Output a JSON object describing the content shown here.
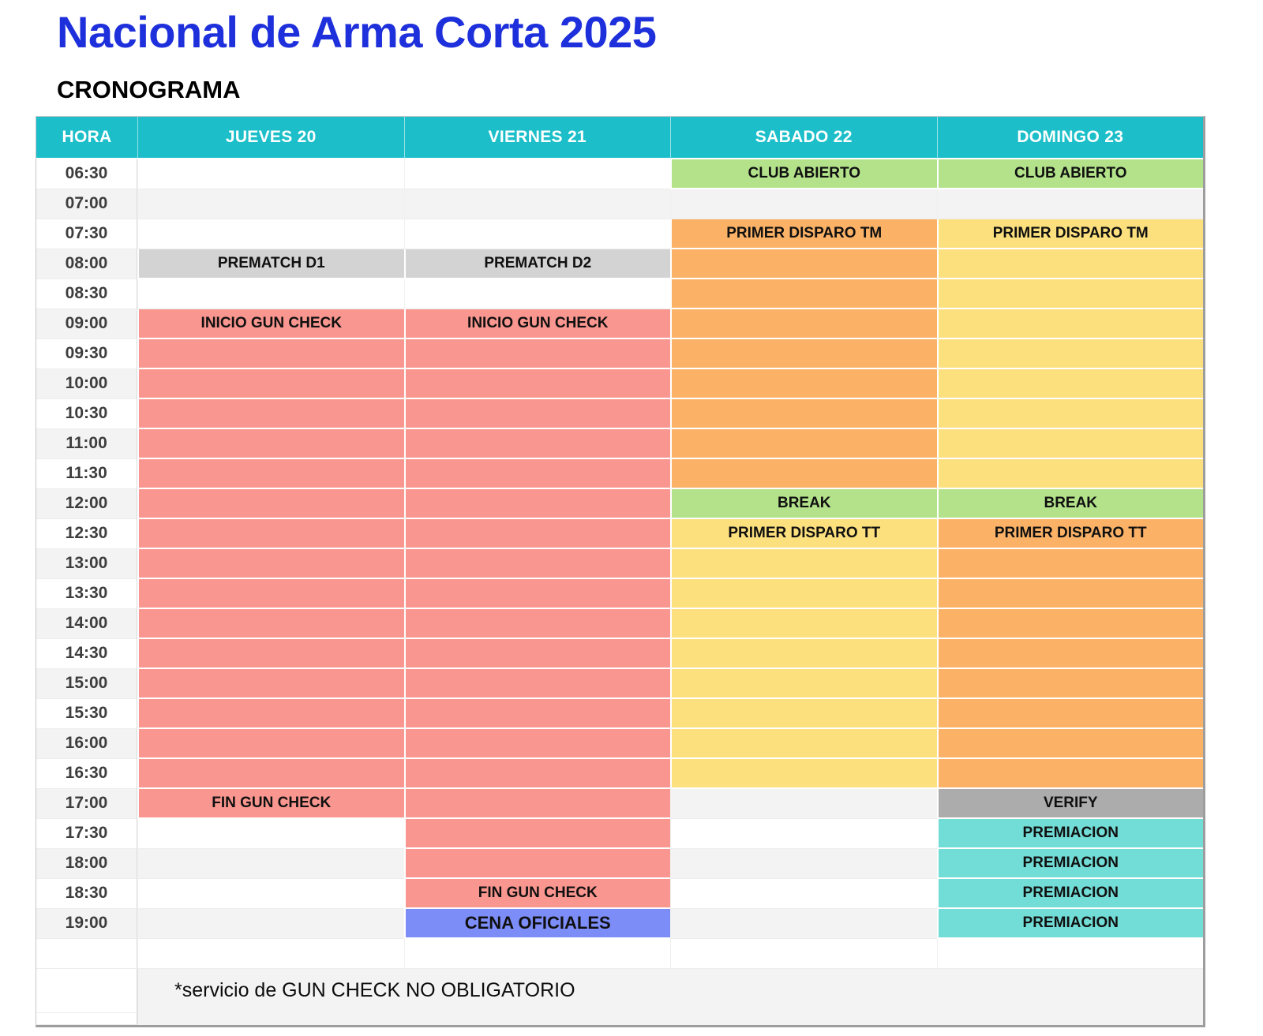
{
  "page": {
    "title": "Nacional de Arma Corta 2025",
    "subtitle": "CRONOGRAMA"
  },
  "palette": {
    "header_teal": "#1CBFC9",
    "salmon": "#F9968F",
    "orange": "#FBB267",
    "yellow": "#FCE07E",
    "green": "#B3E28B",
    "gray": "#D3D3D4",
    "darkgray": "#ACACAC",
    "teal": "#72DCD6",
    "blue": "#7D8DF8",
    "stripe": "#F3F3F4"
  },
  "schedule": {
    "columns": [
      "HORA",
      "JUEVES 20",
      "VIERNES 21",
      "SABADO 22",
      "DOMINGO 23"
    ],
    "rows": [
      {
        "time": "06:30",
        "cells": [
          null,
          null,
          {
            "t": "CLUB ABIERTO",
            "c": "green"
          },
          {
            "t": "CLUB ABIERTO",
            "c": "green"
          }
        ]
      },
      {
        "time": "07:00",
        "cells": [
          null,
          null,
          null,
          null
        ]
      },
      {
        "time": "07:30",
        "cells": [
          null,
          null,
          {
            "t": "PRIMER DISPARO TM",
            "c": "orange"
          },
          {
            "t": "PRIMER DISPARO TM",
            "c": "yellow"
          }
        ]
      },
      {
        "time": "08:00",
        "cells": [
          {
            "t": "PREMATCH D1",
            "c": "gray"
          },
          {
            "t": "PREMATCH D2",
            "c": "gray"
          },
          {
            "t": "",
            "c": "orange"
          },
          {
            "t": "",
            "c": "yellow"
          }
        ]
      },
      {
        "time": "08:30",
        "cells": [
          null,
          null,
          {
            "t": "",
            "c": "orange"
          },
          {
            "t": "",
            "c": "yellow"
          }
        ]
      },
      {
        "time": "09:00",
        "cells": [
          {
            "t": "INICIO GUN CHECK",
            "c": "salmon"
          },
          {
            "t": "INICIO GUN CHECK",
            "c": "salmon"
          },
          {
            "t": "",
            "c": "orange"
          },
          {
            "t": "",
            "c": "yellow"
          }
        ]
      },
      {
        "time": "09:30",
        "cells": [
          {
            "t": "",
            "c": "salmon"
          },
          {
            "t": "",
            "c": "salmon"
          },
          {
            "t": "",
            "c": "orange"
          },
          {
            "t": "",
            "c": "yellow"
          }
        ]
      },
      {
        "time": "10:00",
        "cells": [
          {
            "t": "",
            "c": "salmon"
          },
          {
            "t": "",
            "c": "salmon"
          },
          {
            "t": "",
            "c": "orange"
          },
          {
            "t": "",
            "c": "yellow"
          }
        ]
      },
      {
        "time": "10:30",
        "cells": [
          {
            "t": "",
            "c": "salmon"
          },
          {
            "t": "",
            "c": "salmon"
          },
          {
            "t": "",
            "c": "orange"
          },
          {
            "t": "",
            "c": "yellow"
          }
        ]
      },
      {
        "time": "11:00",
        "cells": [
          {
            "t": "",
            "c": "salmon"
          },
          {
            "t": "",
            "c": "salmon"
          },
          {
            "t": "",
            "c": "orange"
          },
          {
            "t": "",
            "c": "yellow"
          }
        ]
      },
      {
        "time": "11:30",
        "cells": [
          {
            "t": "",
            "c": "salmon"
          },
          {
            "t": "",
            "c": "salmon"
          },
          {
            "t": "",
            "c": "orange"
          },
          {
            "t": "",
            "c": "yellow"
          }
        ]
      },
      {
        "time": "12:00",
        "cells": [
          {
            "t": "",
            "c": "salmon"
          },
          {
            "t": "",
            "c": "salmon"
          },
          {
            "t": "BREAK",
            "c": "green"
          },
          {
            "t": "BREAK",
            "c": "green"
          }
        ]
      },
      {
        "time": "12:30",
        "cells": [
          {
            "t": "",
            "c": "salmon"
          },
          {
            "t": "",
            "c": "salmon"
          },
          {
            "t": "PRIMER DISPARO TT",
            "c": "yellow"
          },
          {
            "t": "PRIMER DISPARO TT",
            "c": "orange"
          }
        ]
      },
      {
        "time": "13:00",
        "cells": [
          {
            "t": "",
            "c": "salmon"
          },
          {
            "t": "",
            "c": "salmon"
          },
          {
            "t": "",
            "c": "yellow"
          },
          {
            "t": "",
            "c": "orange"
          }
        ]
      },
      {
        "time": "13:30",
        "cells": [
          {
            "t": "",
            "c": "salmon"
          },
          {
            "t": "",
            "c": "salmon"
          },
          {
            "t": "",
            "c": "yellow"
          },
          {
            "t": "",
            "c": "orange"
          }
        ]
      },
      {
        "time": "14:00",
        "cells": [
          {
            "t": "",
            "c": "salmon"
          },
          {
            "t": "",
            "c": "salmon"
          },
          {
            "t": "",
            "c": "yellow"
          },
          {
            "t": "",
            "c": "orange"
          }
        ]
      },
      {
        "time": "14:30",
        "cells": [
          {
            "t": "",
            "c": "salmon"
          },
          {
            "t": "",
            "c": "salmon"
          },
          {
            "t": "",
            "c": "yellow"
          },
          {
            "t": "",
            "c": "orange"
          }
        ]
      },
      {
        "time": "15:00",
        "cells": [
          {
            "t": "",
            "c": "salmon"
          },
          {
            "t": "",
            "c": "salmon"
          },
          {
            "t": "",
            "c": "yellow"
          },
          {
            "t": "",
            "c": "orange"
          }
        ]
      },
      {
        "time": "15:30",
        "cells": [
          {
            "t": "",
            "c": "salmon"
          },
          {
            "t": "",
            "c": "salmon"
          },
          {
            "t": "",
            "c": "yellow"
          },
          {
            "t": "",
            "c": "orange"
          }
        ]
      },
      {
        "time": "16:00",
        "cells": [
          {
            "t": "",
            "c": "salmon"
          },
          {
            "t": "",
            "c": "salmon"
          },
          {
            "t": "",
            "c": "yellow"
          },
          {
            "t": "",
            "c": "orange"
          }
        ]
      },
      {
        "time": "16:30",
        "cells": [
          {
            "t": "",
            "c": "salmon"
          },
          {
            "t": "",
            "c": "salmon"
          },
          {
            "t": "",
            "c": "yellow"
          },
          {
            "t": "",
            "c": "orange"
          }
        ]
      },
      {
        "time": "17:00",
        "cells": [
          {
            "t": "FIN GUN CHECK",
            "c": "salmon"
          },
          {
            "t": "",
            "c": "salmon"
          },
          null,
          {
            "t": "VERIFY",
            "c": "darkgray"
          }
        ]
      },
      {
        "time": "17:30",
        "cells": [
          null,
          {
            "t": "",
            "c": "salmon"
          },
          null,
          {
            "t": "PREMIACION",
            "c": "teal"
          }
        ]
      },
      {
        "time": "18:00",
        "cells": [
          null,
          {
            "t": "",
            "c": "salmon"
          },
          null,
          {
            "t": "PREMIACION",
            "c": "teal"
          }
        ]
      },
      {
        "time": "18:30",
        "cells": [
          null,
          {
            "t": "FIN GUN CHECK",
            "c": "salmon"
          },
          null,
          {
            "t": "PREMIACION",
            "c": "teal"
          }
        ]
      },
      {
        "time": "19:00",
        "cells": [
          null,
          {
            "t": "CENA OFICIALES",
            "c": "blue",
            "fs": 22
          },
          null,
          {
            "t": "PREMIACION",
            "c": "teal"
          }
        ]
      }
    ],
    "footer_note": "*servicio de GUN CHECK NO OBLIGATORIO"
  }
}
